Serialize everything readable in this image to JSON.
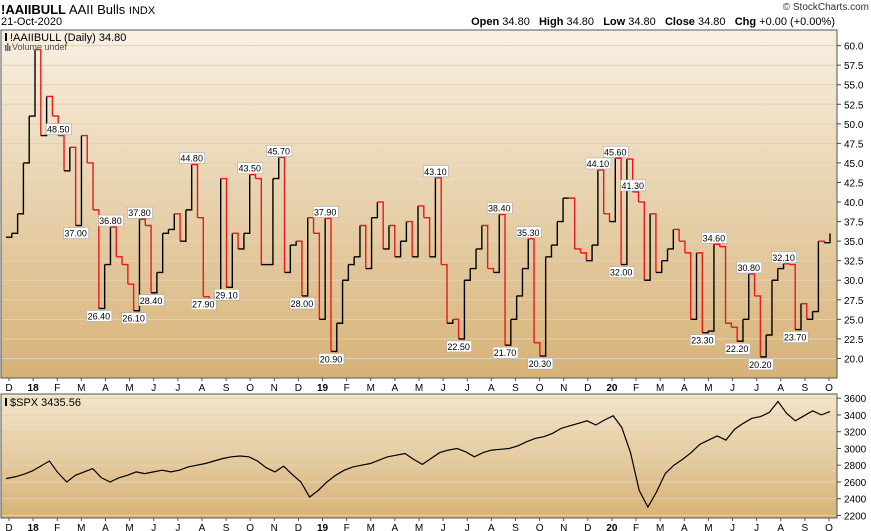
{
  "header": {
    "symbol": "!AAIIBULL",
    "name": "AAII Bulls",
    "exchange": "INDX",
    "date": "21-Oct-2020",
    "open_label": "Open",
    "open": "34.80",
    "high_label": "High",
    "high": "34.80",
    "low_label": "Low",
    "low": "34.80",
    "close_label": "Close",
    "close": "34.80",
    "chg_label": "Chg",
    "chg": "+0.00 (+0.00%)",
    "watermark": "© StockCharts.com"
  },
  "legend": {
    "main_series": "!AAIIBULL (Daily) 34.80",
    "volume": "Volume undef",
    "spx_series": "$SPX 3435.56"
  },
  "colors": {
    "up_line": "#000000",
    "down_line": "#e8191b",
    "panel_top": "#f8f0e2",
    "panel_bottom": "#d7b277",
    "axis_bg": "#ffffff"
  },
  "x_axis": {
    "labels": [
      "D",
      "18",
      "F",
      "M",
      "A",
      "M",
      "J",
      "J",
      "A",
      "S",
      "O",
      "N",
      "D",
      "19",
      "F",
      "M",
      "A",
      "M",
      "J",
      "J",
      "A",
      "S",
      "O",
      "N",
      "D",
      "20",
      "F",
      "M",
      "A",
      "M",
      "J",
      "J",
      "A",
      "S",
      "O"
    ],
    "bold": [
      "18",
      "19",
      "20"
    ]
  },
  "chart_data": [
    {
      "type": "line",
      "title": "!AAIIBULL (Daily) 34.80",
      "series_name": "AAII Bulls",
      "x_range": [
        "2017-12-01",
        "2020-10-21"
      ],
      "ylim": [
        17.5,
        62
      ],
      "y_ticks": [
        "20.0",
        "22.5",
        "25.0",
        "27.5",
        "30.0",
        "32.5",
        "35.0",
        "37.5",
        "40.0",
        "42.5",
        "45.0",
        "47.5",
        "50.0",
        "52.5",
        "55.0",
        "57.5",
        "60.0"
      ],
      "y_tick_values": [
        20.0,
        22.5,
        25.0,
        27.5,
        30.0,
        32.5,
        35.0,
        37.5,
        40.0,
        42.5,
        45.0,
        47.5,
        50.0,
        52.5,
        55.0,
        57.5,
        60.0
      ],
      "values": [
        35.5,
        36.0,
        38.5,
        45.0,
        51.0,
        59.5,
        48.5,
        53.5,
        51.0,
        48.5,
        44.0,
        47.0,
        37.0,
        48.5,
        45.0,
        39.0,
        26.4,
        32.0,
        36.8,
        33.0,
        32.0,
        29.5,
        26.1,
        37.8,
        37.0,
        28.4,
        31.0,
        36.0,
        36.5,
        38.5,
        35.0,
        39.0,
        44.8,
        38.0,
        27.9,
        27.5,
        28.0,
        43.0,
        29.1,
        36.0,
        34.0,
        36.0,
        43.5,
        43.0,
        32.0,
        32.0,
        43.0,
        45.7,
        31.0,
        34.5,
        35.0,
        28.0,
        38.0,
        36.0,
        25.0,
        37.9,
        20.9,
        24.5,
        30.0,
        32.0,
        33.0,
        37.0,
        31.5,
        38.0,
        40.0,
        34.0,
        37.0,
        33.0,
        35.0,
        37.5,
        33.0,
        39.5,
        38.0,
        33.0,
        43.1,
        32.0,
        24.5,
        25.0,
        22.5,
        30.0,
        31.5,
        34.0,
        37.0,
        31.5,
        31.0,
        38.4,
        21.7,
        25.0,
        28.0,
        31.5,
        35.3,
        22.0,
        20.3,
        33.0,
        34.5,
        37.5,
        40.5,
        40.5,
        34.0,
        33.5,
        32.5,
        34.5,
        44.1,
        38.5,
        37.5,
        45.6,
        32.0,
        45.5,
        41.3,
        40.0,
        30.0,
        38.5,
        31.0,
        32.5,
        34.0,
        36.5,
        35.0,
        33.5,
        25.0,
        33.5,
        23.3,
        23.5,
        34.6,
        34.3,
        24.5,
        24.0,
        22.2,
        25.0,
        30.8,
        28.0,
        20.2,
        23.0,
        30.0,
        31.5,
        32.1,
        32.0,
        23.7,
        27.0,
        25.0,
        26.0,
        35.0,
        34.8,
        36.0
      ],
      "annotations": [
        {
          "index": 9,
          "text": "48.50",
          "pos": "above"
        },
        {
          "index": 12,
          "text": "37.00",
          "pos": "below"
        },
        {
          "index": 16,
          "text": "26.40",
          "pos": "below"
        },
        {
          "index": 18,
          "text": "36.80",
          "pos": "above"
        },
        {
          "index": 22,
          "text": "26.10",
          "pos": "below"
        },
        {
          "index": 23,
          "text": "37.80",
          "pos": "above"
        },
        {
          "index": 25,
          "text": "28.40",
          "pos": "below"
        },
        {
          "index": 32,
          "text": "44.80",
          "pos": "above"
        },
        {
          "index": 34,
          "text": "27.90",
          "pos": "below"
        },
        {
          "index": 38,
          "text": "29.10",
          "pos": "below"
        },
        {
          "index": 42,
          "text": "43.50",
          "pos": "above"
        },
        {
          "index": 47,
          "text": "45.70",
          "pos": "above"
        },
        {
          "index": 51,
          "text": "28.00",
          "pos": "below"
        },
        {
          "index": 55,
          "text": "37.90",
          "pos": "above"
        },
        {
          "index": 56,
          "text": "20.90",
          "pos": "below"
        },
        {
          "index": 74,
          "text": "43.10",
          "pos": "above"
        },
        {
          "index": 78,
          "text": "22.50",
          "pos": "below"
        },
        {
          "index": 85,
          "text": "38.40",
          "pos": "above"
        },
        {
          "index": 86,
          "text": "21.70",
          "pos": "below"
        },
        {
          "index": 90,
          "text": "35.30",
          "pos": "above"
        },
        {
          "index": 92,
          "text": "20.30",
          "pos": "below"
        },
        {
          "index": 102,
          "text": "44.10",
          "pos": "above"
        },
        {
          "index": 105,
          "text": "45.60",
          "pos": "above"
        },
        {
          "index": 106,
          "text": "32.00",
          "pos": "below"
        },
        {
          "index": 108,
          "text": "41.30",
          "pos": "above"
        },
        {
          "index": 120,
          "text": "23.30",
          "pos": "below"
        },
        {
          "index": 122,
          "text": "34.60",
          "pos": "above"
        },
        {
          "index": 126,
          "text": "22.20",
          "pos": "below"
        },
        {
          "index": 128,
          "text": "30.80",
          "pos": "above"
        },
        {
          "index": 130,
          "text": "20.20",
          "pos": "below"
        },
        {
          "index": 134,
          "text": "32.10",
          "pos": "above"
        },
        {
          "index": 136,
          "text": "23.70",
          "pos": "below"
        }
      ]
    },
    {
      "type": "line",
      "title": "$SPX 3435.56",
      "series_name": "$SPX",
      "x_range": [
        "2017-12-01",
        "2020-10-21"
      ],
      "ylim": [
        2170,
        3650
      ],
      "y_ticks": [
        "2200",
        "2400",
        "2600",
        "2800",
        "3000",
        "3200",
        "3400",
        "3600"
      ],
      "y_tick_values": [
        2200,
        2400,
        2600,
        2800,
        3000,
        3200,
        3400,
        3600
      ],
      "values": [
        2640,
        2660,
        2690,
        2730,
        2790,
        2850,
        2710,
        2600,
        2680,
        2720,
        2760,
        2650,
        2600,
        2650,
        2680,
        2720,
        2700,
        2720,
        2740,
        2720,
        2740,
        2780,
        2800,
        2820,
        2850,
        2880,
        2900,
        2910,
        2900,
        2850,
        2770,
        2720,
        2790,
        2690,
        2600,
        2420,
        2500,
        2600,
        2680,
        2740,
        2780,
        2800,
        2820,
        2860,
        2900,
        2920,
        2940,
        2870,
        2810,
        2880,
        2950,
        2980,
        3000,
        2960,
        2900,
        2950,
        2980,
        2990,
        3000,
        3030,
        3080,
        3120,
        3140,
        3180,
        3240,
        3270,
        3300,
        3330,
        3280,
        3340,
        3390,
        3250,
        2950,
        2500,
        2300,
        2480,
        2700,
        2800,
        2870,
        2950,
        3050,
        3100,
        3150,
        3100,
        3230,
        3300,
        3360,
        3380,
        3430,
        3560,
        3420,
        3330,
        3390,
        3450,
        3400,
        3440
      ]
    }
  ]
}
